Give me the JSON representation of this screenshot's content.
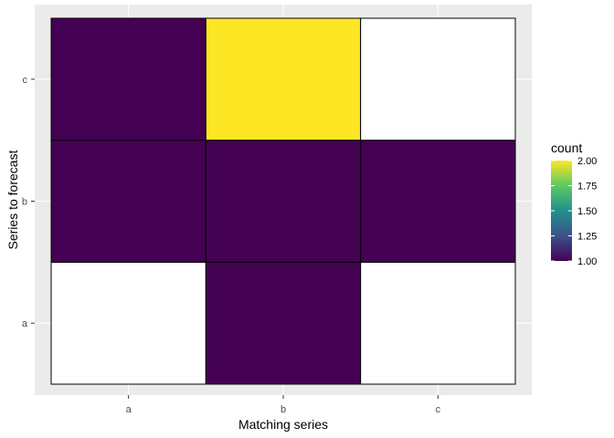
{
  "chart_data": {
    "type": "heatmap",
    "xlabel": "Matching series",
    "ylabel": "Series to forecast",
    "x_categories": [
      "a",
      "b",
      "c"
    ],
    "y_categories": [
      "a",
      "b",
      "c"
    ],
    "cells": [
      {
        "x": "a",
        "y": "a",
        "count": null
      },
      {
        "x": "b",
        "y": "a",
        "count": 1
      },
      {
        "x": "c",
        "y": "a",
        "count": null
      },
      {
        "x": "a",
        "y": "b",
        "count": 1
      },
      {
        "x": "b",
        "y": "b",
        "count": 1
      },
      {
        "x": "c",
        "y": "b",
        "count": 1
      },
      {
        "x": "a",
        "y": "c",
        "count": 1
      },
      {
        "x": "b",
        "y": "c",
        "count": 2
      },
      {
        "x": "c",
        "y": "c",
        "count": null
      }
    ],
    "legend": {
      "title": "count",
      "placement": "right",
      "range": [
        1.0,
        2.0
      ],
      "ticks": [
        "1.00",
        "1.25",
        "1.50",
        "1.75",
        "2.00"
      ],
      "colormap": [
        "#440154",
        "#3B528B",
        "#21908C",
        "#5DC963",
        "#FDE725"
      ]
    },
    "panel_background": "#EBEBEB",
    "empty_cell_color": "#FFFFFF",
    "grid": true
  }
}
